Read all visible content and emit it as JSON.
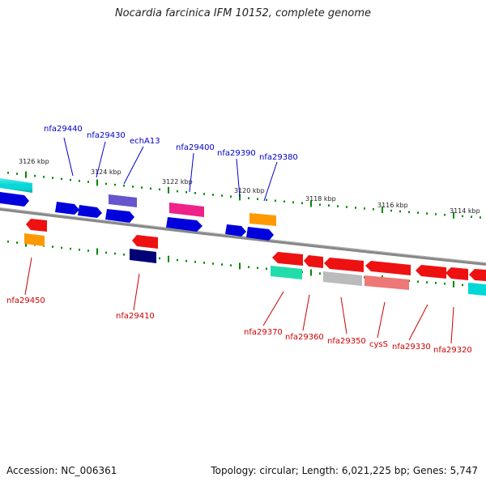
{
  "title": "Nocardia farcinica IFM 10152, complete genome",
  "accession": "Accession: NC_006361",
  "summary": "Topology: circular; Length: 6,021,225 bp; Genes: 5,747",
  "colors": {
    "forward_label": "#0000cc",
    "reverse_label": "#cc0000",
    "backbone": "#888888",
    "ticks": "#008800"
  },
  "ruler": [
    {
      "label": "3126 kbp"
    },
    {
      "label": "3124 kbp"
    },
    {
      "label": "3122 kbp"
    },
    {
      "label": "3120 kbp"
    },
    {
      "label": "3118 kbp"
    },
    {
      "label": "3116 kbp"
    },
    {
      "label": "3114 kbp"
    }
  ],
  "forward_genes": [
    {
      "name": "nfa29440",
      "color": "#0000dd"
    },
    {
      "name": "nfa29430",
      "color": "#0000dd"
    },
    {
      "name": "echA13",
      "color": "#6655cc"
    },
    {
      "name": "nfa29400",
      "color": "#ee2288"
    },
    {
      "name": "nfa29390",
      "color": "#0000dd"
    },
    {
      "name": "nfa29380",
      "color": "#0000dd"
    }
  ],
  "reverse_genes": [
    {
      "name": "nfa29450",
      "color": "#ee1111"
    },
    {
      "name": "nfa29410",
      "color": "#ee1111"
    },
    {
      "name": "nfa29370",
      "color": "#ee1111"
    },
    {
      "name": "nfa29360",
      "color": "#ee1111"
    },
    {
      "name": "nfa29350",
      "color": "#ee1111"
    },
    {
      "name": "cysS",
      "color": "#ee1111"
    },
    {
      "name": "nfa29330",
      "color": "#ee1111"
    },
    {
      "name": "nfa29320",
      "color": "#ee1111"
    }
  ],
  "other_feature_colors": {
    "cyan": "#00d8d8",
    "orange": "#ff9900",
    "navy": "#000077",
    "teal": "#22ddaa",
    "gray": "#bbbbbb",
    "pink": "#ee7777"
  }
}
